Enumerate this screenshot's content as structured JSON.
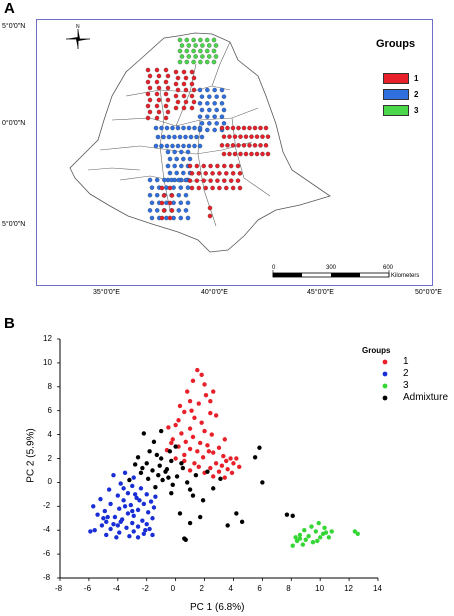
{
  "panel_a": {
    "letter": "A",
    "legend_title": "Groups",
    "legend_items": [
      {
        "label": "1",
        "color": "#e8202a"
      },
      {
        "label": "2",
        "color": "#2f6fe0"
      },
      {
        "label": "3",
        "color": "#4cd64c"
      }
    ],
    "north_label": "N",
    "lat_labels": [
      "5°0'0\"N",
      "0°0'0\"N",
      "5°0'0\"N"
    ],
    "lon_labels": [
      "35°0'0\"E",
      "40°0'0\"E",
      "45°0'0\"E",
      "50°0'0\"E"
    ],
    "scale_ticks": [
      "0",
      "300",
      "600"
    ],
    "scale_unit": "Kilometers"
  },
  "chart_data": {
    "type": "scatter",
    "panel_letter": "B",
    "xlabel": "PC 1 (6.8%)",
    "ylabel": "PC 2 (5.9%)",
    "xlim": [
      -8,
      14
    ],
    "ylim": [
      -8,
      12
    ],
    "xticks": [
      "-8",
      "-6",
      "-4",
      "-2",
      "0",
      "2",
      "4",
      "6",
      "8",
      "10",
      "12",
      "14"
    ],
    "yticks": [
      "-8",
      "-6",
      "-4",
      "-2",
      "0",
      "2",
      "4",
      "6",
      "8",
      "10",
      "12"
    ],
    "legend_title": "Groups",
    "legend_position": "top-right",
    "series": [
      {
        "name": "1",
        "color": "#e8202a",
        "points": [
          [
            1.5,
            9.4
          ],
          [
            1.8,
            9.0
          ],
          [
            1.2,
            8.5
          ],
          [
            2.0,
            8.2
          ],
          [
            2.6,
            7.6
          ],
          [
            2.1,
            7.3
          ],
          [
            0.8,
            7.6
          ],
          [
            1.0,
            6.8
          ],
          [
            1.6,
            6.6
          ],
          [
            0.3,
            6.4
          ],
          [
            0.6,
            5.9
          ],
          [
            2.4,
            5.8
          ],
          [
            2.8,
            5.6
          ],
          [
            1.3,
            5.4
          ],
          [
            0.2,
            5.2
          ],
          [
            1.8,
            5.0
          ],
          [
            0.0,
            4.8
          ],
          [
            -0.5,
            4.6
          ],
          [
            1.0,
            4.5
          ],
          [
            2.0,
            4.3
          ],
          [
            0.4,
            4.1
          ],
          [
            2.5,
            4.0
          ],
          [
            1.2,
            3.8
          ],
          [
            -0.2,
            3.6
          ],
          [
            0.7,
            3.4
          ],
          [
            1.7,
            3.3
          ],
          [
            2.2,
            3.1
          ],
          [
            0.2,
            3.0
          ],
          [
            1.0,
            2.8
          ],
          [
            3.0,
            2.9
          ],
          [
            -0.6,
            2.7
          ],
          [
            1.5,
            2.6
          ],
          [
            2.6,
            2.5
          ],
          [
            0.6,
            2.3
          ],
          [
            3.3,
            2.2
          ],
          [
            1.9,
            2.1
          ],
          [
            3.8,
            2.0
          ],
          [
            4.2,
            2.0
          ],
          [
            0.0,
            2.0
          ],
          [
            3.5,
            1.8
          ],
          [
            2.8,
            1.6
          ],
          [
            4.0,
            1.6
          ],
          [
            1.3,
            1.6
          ],
          [
            3.2,
            1.4
          ],
          [
            4.4,
            1.3
          ],
          [
            2.4,
            1.2
          ],
          [
            3.6,
            1.1
          ],
          [
            1.0,
            1.0
          ],
          [
            3.0,
            0.9
          ],
          [
            2.0,
            0.8
          ],
          [
            3.9,
            0.8
          ],
          [
            2.6,
            0.5
          ],
          [
            3.4,
            0.4
          ],
          [
            1.6,
            1.3
          ],
          [
            0.6,
            1.8
          ],
          [
            2.3,
            2.6
          ],
          [
            -0.3,
            3.3
          ],
          [
            1.1,
            6.0
          ],
          [
            2.4,
            6.8
          ],
          [
            3.4,
            3.6
          ]
        ]
      },
      {
        "name": "2",
        "color": "#1a2ed6",
        "points": [
          [
            -4.3,
            0.6
          ],
          [
            -3.5,
            0.8
          ],
          [
            -2.9,
            0.4
          ],
          [
            -3.8,
            -0.1
          ],
          [
            -3.0,
            -0.3
          ],
          [
            -2.4,
            -0.5
          ],
          [
            -4.6,
            -0.6
          ],
          [
            -3.3,
            -0.9
          ],
          [
            -2.0,
            -1.0
          ],
          [
            -4.0,
            -1.1
          ],
          [
            -2.7,
            -1.3
          ],
          [
            -5.2,
            -1.4
          ],
          [
            -3.6,
            -1.5
          ],
          [
            -1.7,
            -1.6
          ],
          [
            -4.5,
            -1.8
          ],
          [
            -2.2,
            -1.8
          ],
          [
            -3.1,
            -1.9
          ],
          [
            -5.7,
            -2.0
          ],
          [
            -1.5,
            -2.1
          ],
          [
            -3.9,
            -2.2
          ],
          [
            -2.6,
            -2.3
          ],
          [
            -4.9,
            -2.4
          ],
          [
            -1.9,
            -2.5
          ],
          [
            -3.3,
            -2.6
          ],
          [
            -5.4,
            -2.7
          ],
          [
            -2.9,
            -2.8
          ],
          [
            -4.2,
            -2.9
          ],
          [
            -1.6,
            -3.0
          ],
          [
            -3.7,
            -3.1
          ],
          [
            -2.3,
            -3.2
          ],
          [
            -4.8,
            -3.3
          ],
          [
            -3.0,
            -3.4
          ],
          [
            -2.0,
            -3.5
          ],
          [
            -5.1,
            -3.6
          ],
          [
            -4.0,
            -3.6
          ],
          [
            -2.6,
            -3.7
          ],
          [
            -3.4,
            -3.8
          ],
          [
            -1.8,
            -3.9
          ],
          [
            -4.5,
            -3.9
          ],
          [
            -5.6,
            -4.0
          ],
          [
            -2.9,
            -4.1
          ],
          [
            -3.9,
            -4.2
          ],
          [
            -2.2,
            -4.3
          ],
          [
            -4.8,
            -4.4
          ],
          [
            -3.2,
            -4.5
          ],
          [
            -1.6,
            -4.4
          ],
          [
            -2.6,
            -4.6
          ],
          [
            -4.1,
            -4.6
          ],
          [
            -3.5,
            -2.0
          ],
          [
            -2.5,
            -1.5
          ],
          [
            -4.7,
            -2.9
          ],
          [
            -3.6,
            -0.5
          ],
          [
            -5.9,
            -4.1
          ],
          [
            -2.1,
            -4.0
          ],
          [
            -3.0,
            -2.4
          ],
          [
            -4.3,
            -3.5
          ],
          [
            -1.4,
            -1.2
          ],
          [
            -5.0,
            -3.0
          ],
          [
            -3.8,
            -3.3
          ],
          [
            -2.8,
            -1.0
          ]
        ]
      },
      {
        "name": "3",
        "color": "#33d633",
        "points": [
          [
            9.9,
            -3.4
          ],
          [
            9.4,
            -3.7
          ],
          [
            10.3,
            -3.8
          ],
          [
            8.9,
            -4.0
          ],
          [
            9.7,
            -4.1
          ],
          [
            10.8,
            -4.1
          ],
          [
            8.6,
            -4.4
          ],
          [
            9.2,
            -4.5
          ],
          [
            10.0,
            -4.6
          ],
          [
            10.6,
            -4.6
          ],
          [
            12.4,
            -4.1
          ],
          [
            12.6,
            -4.3
          ],
          [
            8.4,
            -4.9
          ],
          [
            9.5,
            -5.0
          ],
          [
            8.8,
            -5.2
          ],
          [
            8.1,
            -5.3
          ],
          [
            10.2,
            -4.3
          ],
          [
            9.0,
            -4.8
          ],
          [
            8.3,
            -4.6
          ],
          [
            9.8,
            -4.9
          ],
          [
            10.4,
            -4.2
          ],
          [
            8.6,
            -4.7
          ]
        ]
      },
      {
        "name": "Admixture",
        "color": "#000000",
        "points": [
          [
            -2.2,
            4.1
          ],
          [
            -1.0,
            4.3
          ],
          [
            -1.5,
            3.4
          ],
          [
            -2.6,
            2.1
          ],
          [
            -1.3,
            2.3
          ],
          [
            -0.4,
            2.6
          ],
          [
            -2.0,
            1.6
          ],
          [
            -1.1,
            1.4
          ],
          [
            -0.3,
            1.8
          ],
          [
            0.5,
            1.2
          ],
          [
            -1.6,
            1.0
          ],
          [
            -0.7,
            0.9
          ],
          [
            -2.4,
            0.8
          ],
          [
            0.1,
            0.5
          ],
          [
            -1.9,
            0.3
          ],
          [
            -0.9,
            0.2
          ],
          [
            0.8,
            0.0
          ],
          [
            -0.2,
            -0.2
          ],
          [
            -1.4,
            -0.4
          ],
          [
            1.0,
            -0.6
          ],
          [
            -0.3,
            -0.9
          ],
          [
            1.2,
            -1.1
          ],
          [
            -1.0,
            2.0
          ],
          [
            -1.8,
            2.6
          ],
          [
            0.4,
            1.6
          ],
          [
            -2.3,
            1.2
          ],
          [
            -0.6,
            1.1
          ],
          [
            -1.2,
            0.6
          ],
          [
            2.2,
            0.9
          ],
          [
            3.1,
            0.3
          ],
          [
            2.6,
            -0.5
          ],
          [
            0.3,
            -2.6
          ],
          [
            1.7,
            -2.9
          ],
          [
            1.0,
            -3.4
          ],
          [
            4.2,
            -2.6
          ],
          [
            4.6,
            -3.3
          ],
          [
            3.6,
            -3.6
          ],
          [
            6.0,
            0.0
          ],
          [
            5.5,
            2.1
          ],
          [
            5.8,
            2.9
          ],
          [
            7.7,
            -2.7
          ],
          [
            8.1,
            -2.8
          ],
          [
            0.6,
            -4.7
          ],
          [
            0.7,
            -4.8
          ],
          [
            1.9,
            -1.5
          ],
          [
            -0.5,
            0.4
          ],
          [
            -3.2,
            0.2
          ],
          [
            -2.8,
            1.5
          ],
          [
            0.0,
            3.0
          ],
          [
            1.4,
            0.6
          ]
        ]
      }
    ]
  }
}
